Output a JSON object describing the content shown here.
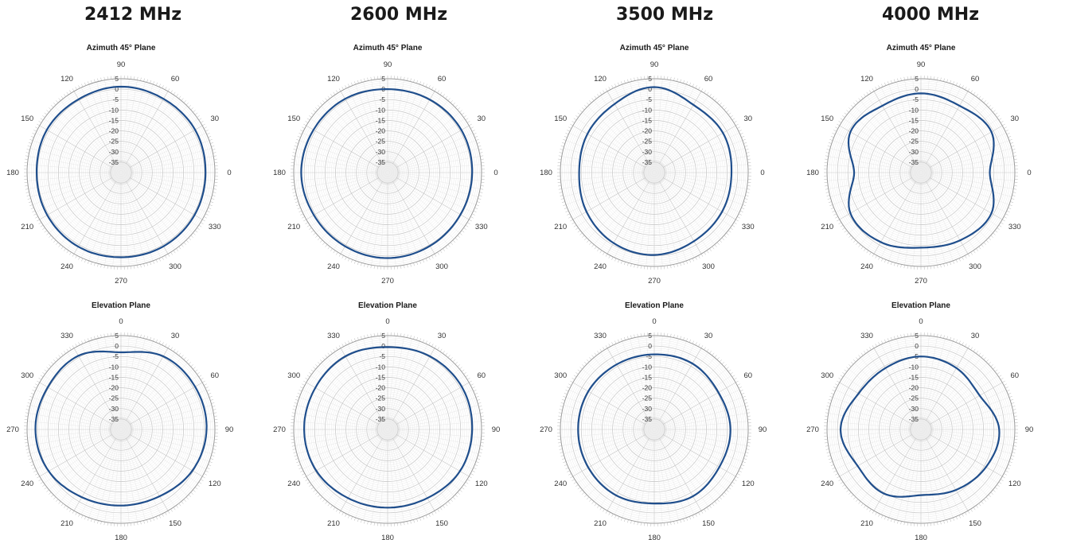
{
  "colors": {
    "trace": "#1f4e8c",
    "ring": "#c9c9c9",
    "inner": "#e3e3e3",
    "label": "#333333",
    "title": "#1a1a1a"
  },
  "frequencies": [
    "2412 MHz",
    "2600 MHz",
    "3500 MHz",
    "4000 MHz"
  ],
  "chart_data": [
    {
      "type": "polar",
      "title": "Azimuth 45° Plane",
      "frequency": "2412 MHz",
      "r_ticks": [
        "5",
        "0",
        "-5",
        "-10",
        "-15",
        "-20",
        "-25",
        "-30",
        "-35"
      ],
      "rlim": [
        -40,
        5
      ],
      "angle_ticks": [
        "90",
        "60",
        "30",
        "0",
        "330",
        "300",
        "270",
        "240",
        "210",
        "180",
        "150",
        "120"
      ],
      "series": [
        {
          "angles": [
            0,
            30,
            60,
            90,
            120,
            150,
            180,
            210,
            240,
            270,
            300,
            330
          ],
          "values": [
            0.5,
            1.0,
            0.8,
            1.2,
            0.6,
            1.0,
            0.4,
            0.8,
            1.0,
            0.6,
            0.8,
            0.7
          ]
        }
      ]
    },
    {
      "type": "polar",
      "title": "Azimuth 45° Plane",
      "frequency": "2600 MHz",
      "r_ticks": [
        "5",
        "0",
        "-5",
        "-10",
        "-15",
        "-20",
        "-25",
        "-30",
        "-35"
      ],
      "rlim": [
        -40,
        5
      ],
      "angle_ticks": [
        "90",
        "60",
        "30",
        "0",
        "330",
        "300",
        "270",
        "240",
        "210",
        "180",
        "150",
        "120"
      ],
      "series": [
        {
          "angles": [
            0,
            30,
            60,
            90,
            120,
            150,
            180,
            210,
            240,
            270,
            300,
            330
          ],
          "values": [
            0.5,
            0.8,
            0.4,
            0.0,
            0.8,
            1.0,
            1.4,
            0.8,
            0.8,
            1.0,
            0.6,
            0.3
          ]
        }
      ]
    },
    {
      "type": "polar",
      "title": "Azimuth 45° Plane",
      "frequency": "3500 MHz",
      "r_ticks": [
        "5",
        "0",
        "-5",
        "-10",
        "-15",
        "-20",
        "-25",
        "-30",
        "-35"
      ],
      "rlim": [
        -40,
        5
      ],
      "angle_ticks": [
        "90",
        "60",
        "30",
        "0",
        "330",
        "300",
        "270",
        "240",
        "210",
        "180",
        "150",
        "120"
      ],
      "series": [
        {
          "angles": [
            0,
            30,
            60,
            90,
            120,
            150,
            180,
            210,
            240,
            270,
            300,
            330
          ],
          "values": [
            -3.0,
            -2.0,
            -2.5,
            1.0,
            -2.0,
            -3.0,
            -4.0,
            -2.5,
            -1.0,
            -0.5,
            -2.0,
            -2.5
          ]
        }
      ]
    },
    {
      "type": "polar",
      "title": "Azimuth 45° Plane",
      "frequency": "4000 MHz",
      "r_ticks": [
        "5",
        "0",
        "-5",
        "-10",
        "-15",
        "-20",
        "-25",
        "-30",
        "-35"
      ],
      "rlim": [
        -40,
        5
      ],
      "angle_ticks": [
        "90",
        "60",
        "30",
        "0",
        "330",
        "300",
        "270",
        "240",
        "210",
        "180",
        "150",
        "120"
      ],
      "series": [
        {
          "angles": [
            0,
            30,
            60,
            90,
            120,
            150,
            180,
            210,
            240,
            270,
            300,
            330
          ],
          "values": [
            -7.0,
            -1.0,
            -3.0,
            -2.0,
            -3.0,
            -1.0,
            -8.0,
            -1.0,
            -1.5,
            -4.0,
            -2.5,
            -1.0
          ]
        }
      ]
    },
    {
      "type": "polar",
      "title": "Elevation Plane",
      "frequency": "2412 MHz",
      "r_ticks": [
        "5",
        "0",
        "-5",
        "-10",
        "-15",
        "-20",
        "-25",
        "-30",
        "-35"
      ],
      "rlim": [
        -40,
        5
      ],
      "angle_ticks": [
        "0",
        "30",
        "60",
        "90",
        "120",
        "150",
        "180",
        "210",
        "240",
        "270",
        "300",
        "330"
      ],
      "series": [
        {
          "angles": [
            0,
            30,
            60,
            90,
            120,
            150,
            180,
            210,
            240,
            270,
            300,
            330
          ],
          "values": [
            -3.0,
            0.5,
            1.0,
            1.0,
            -0.5,
            -3.0,
            -3.5,
            -2.5,
            0.0,
            1.0,
            0.5,
            0.8
          ]
        }
      ]
    },
    {
      "type": "polar",
      "title": "Elevation Plane",
      "frequency": "2600 MHz",
      "r_ticks": [
        "5",
        "0",
        "-5",
        "-10",
        "-15",
        "-20",
        "-25",
        "-30",
        "-35"
      ],
      "rlim": [
        -40,
        5
      ],
      "angle_ticks": [
        "0",
        "30",
        "60",
        "90",
        "120",
        "150",
        "180",
        "210",
        "240",
        "270",
        "300",
        "330"
      ],
      "series": [
        {
          "angles": [
            0,
            30,
            60,
            90,
            120,
            150,
            180,
            210,
            240,
            270,
            300,
            330
          ],
          "values": [
            -0.5,
            0.5,
            1.0,
            0.5,
            0.0,
            -2.0,
            -2.5,
            -2.0,
            -0.5,
            0.0,
            0.0,
            0.5
          ]
        }
      ]
    },
    {
      "type": "polar",
      "title": "Elevation Plane",
      "frequency": "3500 MHz",
      "r_ticks": [
        "5",
        "0",
        "-5",
        "-10",
        "-15",
        "-20",
        "-25",
        "-30",
        "-35"
      ],
      "rlim": [
        -40,
        5
      ],
      "angle_ticks": [
        "0",
        "30",
        "60",
        "90",
        "120",
        "150",
        "180",
        "210",
        "240",
        "270",
        "300",
        "330"
      ],
      "series": [
        {
          "angles": [
            0,
            30,
            60,
            90,
            120,
            150,
            180,
            210,
            240,
            270,
            300,
            330
          ],
          "values": [
            -4.0,
            -3.5,
            -4.5,
            -3.5,
            -4.0,
            -3.0,
            -4.5,
            -3.5,
            -3.5,
            -3.5,
            -3.5,
            -4.0
          ]
        }
      ]
    },
    {
      "type": "polar",
      "title": "Elevation Plane",
      "frequency": "4000 MHz",
      "r_ticks": [
        "5",
        "0",
        "-5",
        "-10",
        "-15",
        "-20",
        "-25",
        "-30",
        "-35"
      ],
      "rlim": [
        -40,
        5
      ],
      "angle_ticks": [
        "0",
        "30",
        "60",
        "90",
        "120",
        "150",
        "180",
        "210",
        "240",
        "270",
        "300",
        "330"
      ],
      "series": [
        {
          "angles": [
            0,
            30,
            60,
            90,
            120,
            150,
            180,
            210,
            240,
            270,
            300,
            330
          ],
          "values": [
            -5.0,
            -6.0,
            -7.5,
            -2.5,
            -4.0,
            -6.5,
            -8.5,
            -4.5,
            -5.0,
            -1.5,
            -5.5,
            -6.0
          ]
        }
      ]
    }
  ]
}
